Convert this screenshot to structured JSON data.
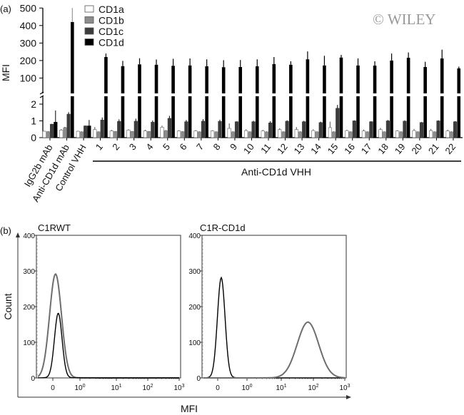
{
  "watermark": "© WILEY",
  "chart_data": [
    {
      "type": "bar",
      "panel_label": "(a)",
      "ylabel": "MFI",
      "y_axis": "broken",
      "ylim_lower": [
        0,
        2.5
      ],
      "ylim_upper": [
        0,
        500
      ],
      "yticks_lower": [
        "0",
        "1",
        "2"
      ],
      "yticks_upper": [
        "100",
        "200",
        "300",
        "400",
        "500"
      ],
      "legend_position": "top-left",
      "group_label": "Anti-CD1d VHH",
      "categories": [
        "IgG2b mAb",
        "Anti-CD1d mAb",
        "Control VHH",
        "1",
        "2",
        "3",
        "4",
        "5",
        "6",
        "7",
        "8",
        "9",
        "10",
        "11",
        "12",
        "13",
        "14",
        "15",
        "16",
        "17",
        "18",
        "19",
        "20",
        "21",
        "22"
      ],
      "series": [
        {
          "name": "CD1a",
          "color": "#ffffff",
          "values": [
            0.38,
            0.45,
            0.38,
            0.48,
            0.4,
            0.45,
            0.4,
            0.62,
            0.4,
            0.4,
            0.4,
            0.55,
            0.42,
            0.4,
            0.48,
            0.48,
            0.42,
            0.6,
            0.42,
            0.4,
            0.48,
            0.4,
            0.42,
            0.42,
            0.4
          ],
          "errors": [
            0.03,
            0.06,
            0.03,
            0.15,
            0.06,
            0.05,
            0.07,
            0.1,
            0.04,
            0.05,
            0.04,
            0.3,
            0.08,
            0.06,
            0.08,
            0.15,
            0.08,
            0.35,
            0.05,
            0.08,
            0.1,
            0.04,
            0.1,
            0.1,
            0.07
          ]
        },
        {
          "name": "CD1b",
          "color": "#8c8c8c",
          "values": [
            0.36,
            0.6,
            0.35,
            0.35,
            0.37,
            0.37,
            0.37,
            0.42,
            0.36,
            0.35,
            0.35,
            0.35,
            0.35,
            0.35,
            0.35,
            0.35,
            0.35,
            0.35,
            0.35,
            0.35,
            0.35,
            0.35,
            0.35,
            0.35,
            0.35
          ],
          "errors": [
            0.02,
            0.04,
            0.02,
            0.02,
            0.02,
            0.02,
            0.02,
            0.03,
            0.02,
            0.02,
            0.02,
            0.02,
            0.02,
            0.02,
            0.02,
            0.02,
            0.02,
            0.02,
            0.02,
            0.02,
            0.02,
            0.02,
            0.02,
            0.02,
            0.02
          ]
        },
        {
          "name": "CD1c",
          "color": "#3c3c3c",
          "values": [
            0.8,
            1.4,
            0.7,
            1.05,
            0.97,
            0.98,
            0.92,
            1.15,
            0.95,
            0.98,
            0.97,
            0.95,
            0.95,
            0.88,
            0.98,
            0.95,
            0.9,
            1.75,
            1.0,
            0.95,
            1.0,
            0.98,
            0.9,
            1.0,
            0.95
          ],
          "errors": [
            0.02,
            0.12,
            0.02,
            0.15,
            0.12,
            0.15,
            0.1,
            0.15,
            0.1,
            0.12,
            0.1,
            0.02,
            0.05,
            0.1,
            0.05,
            0.05,
            0.05,
            0.2,
            0.03,
            0.03,
            0.05,
            0.05,
            0.03,
            0.03,
            0.03
          ]
        },
        {
          "name": "CD1d",
          "color": "#000000",
          "values": [
            0.92,
            420,
            0.7,
            220,
            168,
            178,
            176,
            170,
            172,
            167,
            162,
            163,
            167,
            180,
            176,
            207,
            172,
            217,
            172,
            171,
            200,
            216,
            163,
            212,
            155
          ],
          "errors": [
            0.7,
            80,
            0.35,
            20,
            30,
            35,
            30,
            40,
            40,
            40,
            40,
            40,
            40,
            40,
            20,
            45,
            55,
            15,
            40,
            25,
            40,
            30,
            30,
            50,
            10
          ]
        }
      ]
    },
    {
      "type": "histogram",
      "panel_label": "(b)",
      "ylabel": "Count",
      "xlabel": "MFI",
      "panels": [
        {
          "title": "C1RWT",
          "ylim": [
            0,
            400
          ],
          "yticks": [
            "0",
            "100",
            "200",
            "300",
            "400"
          ],
          "xticks": [
            "0",
            "10^0",
            "10^1",
            "10^2",
            "10^3"
          ],
          "series": [
            {
              "color": "#6e6e6e",
              "peak_mfi": 0.1,
              "peak_count": 290
            },
            {
              "color": "#000000",
              "peak_mfi": 0.2,
              "peak_count": 180
            }
          ]
        },
        {
          "title": "C1R-CD1d",
          "ylim": [
            0,
            400
          ],
          "yticks": [
            "0",
            "100",
            "200",
            "300",
            "400"
          ],
          "xticks": [
            "0",
            "10^0",
            "10^1",
            "10^2",
            "10^3"
          ],
          "series": [
            {
              "color": "#000000",
              "peak_mfi": 0.12,
              "peak_count": 280
            },
            {
              "color": "#6e6e6e",
              "peak_mfi": 74,
              "peak_count": 155
            }
          ]
        }
      ]
    }
  ]
}
